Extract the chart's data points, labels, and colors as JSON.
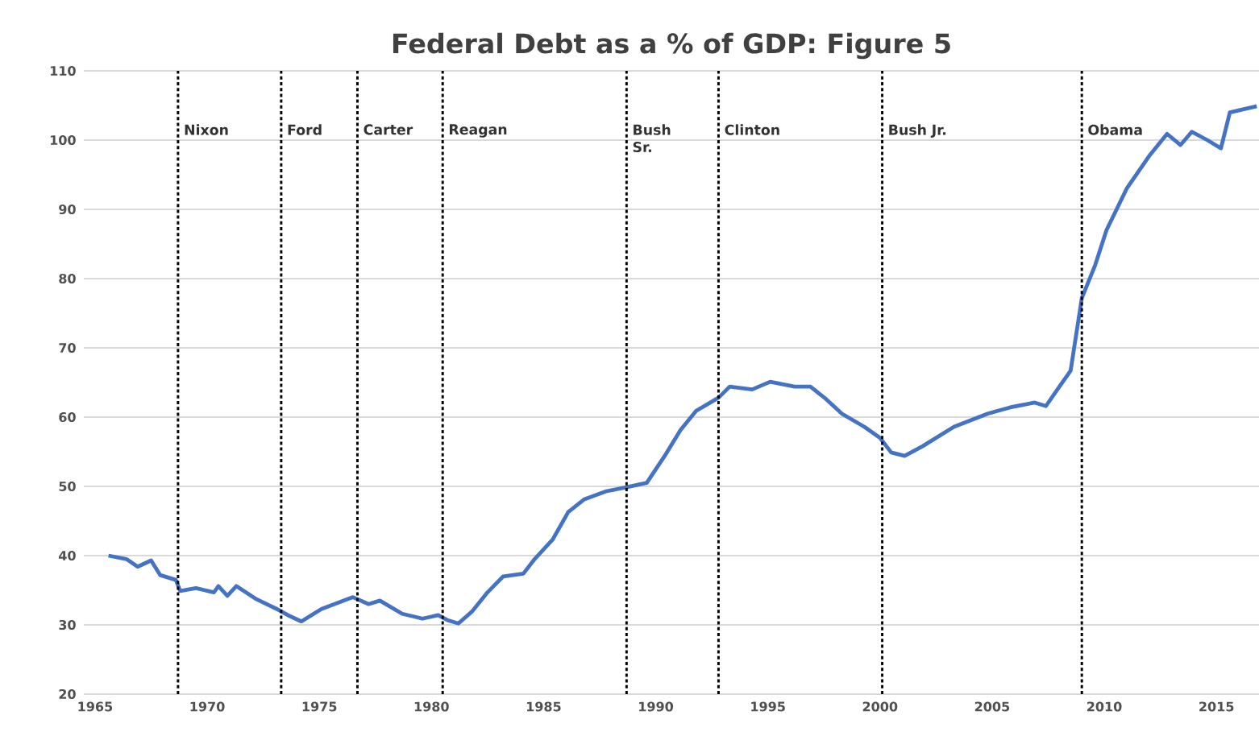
{
  "chart_data": {
    "type": "line",
    "title": "Federal Debt as a % of GDP: Figure 5",
    "x": [
      1965.6,
      1966.4,
      1966.9,
      1967.5,
      1967.9,
      1968.6,
      1968.8,
      1969.5,
      1970.3,
      1970.5,
      1970.9,
      1971.3,
      1972.2,
      1973.1,
      1973.6,
      1974.2,
      1975.1,
      1976.5,
      1977.2,
      1977.7,
      1978.7,
      1979.6,
      1980.3,
      1980.7,
      1981.2,
      1981.8,
      1982.5,
      1983.2,
      1984.1,
      1984.6,
      1985.4,
      1986.1,
      1986.8,
      1987.8,
      1988.6,
      1989.6,
      1990.4,
      1991.1,
      1991.8,
      1992.8,
      1993.3,
      1994.3,
      1995.1,
      1996.2,
      1996.9,
      1997.6,
      1998.3,
      1999.3,
      2000.0,
      2000.5,
      2001.1,
      2001.9,
      2003.3,
      2004.8,
      2005.8,
      2006.9,
      2007.4,
      2008.0,
      2008.5,
      2009.0,
      2009.6,
      2010.1,
      2011.0,
      2012.0,
      2012.8,
      2013.4,
      2013.9,
      2014.6,
      2015.2,
      2015.6,
      2016.8
    ],
    "series": [
      {
        "color": "#4472c4",
        "values": [
          40.0,
          39.5,
          38.4,
          39.3,
          37.2,
          36.5,
          34.9,
          35.3,
          34.7,
          35.6,
          34.2,
          35.6,
          33.7,
          32.3,
          31.4,
          30.5,
          32.3,
          34.0,
          33.0,
          33.5,
          31.6,
          30.9,
          31.4,
          30.7,
          30.2,
          31.9,
          34.7,
          37.0,
          37.4,
          39.5,
          42.3,
          46.3,
          48.1,
          49.3,
          49.8,
          50.5,
          54.4,
          58.1,
          60.9,
          62.8,
          64.4,
          64.0,
          65.1,
          64.4,
          64.4,
          62.6,
          60.5,
          58.6,
          57.0,
          54.9,
          54.4,
          55.8,
          58.6,
          60.5,
          61.4,
          62.1,
          61.6,
          64.4,
          66.7,
          77.2,
          82.0,
          87.0,
          93.0,
          97.7,
          100.9,
          99.3,
          101.2,
          100.0,
          98.8,
          104.0,
          104.9
        ]
      }
    ],
    "xlim": [
      1964.5,
      2016.9
    ],
    "ylim": [
      20,
      110
    ],
    "xticks": [
      1965,
      1970,
      1975,
      1980,
      1985,
      1990,
      1995,
      2000,
      2005,
      2010,
      2015
    ],
    "yticks": [
      20,
      30,
      40,
      50,
      60,
      70,
      80,
      90,
      100,
      110
    ],
    "grid": "y",
    "ref_lines": [
      {
        "axis": "x",
        "value": 1968.7,
        "label": "Nixon",
        "color": "#000000",
        "line_style": "dashed"
      },
      {
        "axis": "x",
        "value": 1973.3,
        "label": "Ford",
        "color": "#000000",
        "line_style": "dashed"
      },
      {
        "axis": "x",
        "value": 1976.7,
        "label": "Carter",
        "color": "#000000",
        "line_style": "dashed"
      },
      {
        "axis": "x",
        "value": 1980.5,
        "label": "Reagan",
        "color": "#000000",
        "line_style": "dashed"
      },
      {
        "axis": "x",
        "value": 1988.7,
        "label": "Bush Sr.",
        "color": "#000000",
        "line_style": "dashed"
      },
      {
        "axis": "x",
        "value": 1992.8,
        "label": "Clinton",
        "color": "#000000",
        "line_style": "dashed"
      },
      {
        "axis": "x",
        "value": 2000.1,
        "label": "Bush Jr.",
        "color": "#000000",
        "line_style": "dashed"
      },
      {
        "axis": "x",
        "value": 2009.0,
        "label": "Obama",
        "color": "#000000",
        "line_style": "dashed"
      }
    ]
  }
}
